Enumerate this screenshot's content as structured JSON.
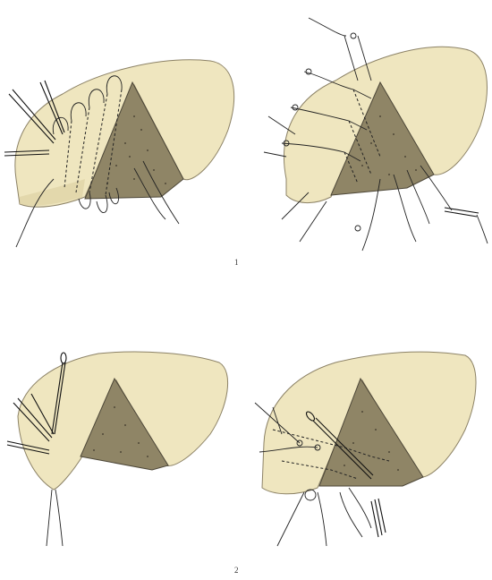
{
  "figures": [
    {
      "id": "1",
      "label": "1"
    },
    {
      "id": "2",
      "label": "2"
    }
  ],
  "colors": {
    "tissue": "#efe6bf",
    "wound": "#8f8566",
    "thread": "#222222",
    "background": "#ffffff"
  }
}
